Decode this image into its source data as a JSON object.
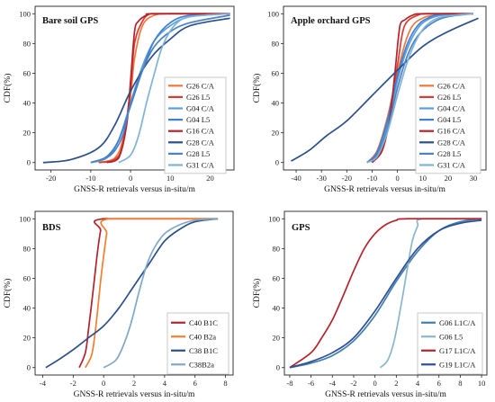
{
  "chart_data": [
    {
      "type": "line",
      "title": "Bare soil  GPS",
      "xlabel": "GNSS-R retrievals versus in-situ/m",
      "ylabel": "CDF(%)",
      "xlim": [
        -24,
        26
      ],
      "ylim": [
        -5,
        105
      ],
      "xticks": [
        -20,
        -10,
        0,
        10,
        20
      ],
      "yticks": [
        0,
        20,
        40,
        60,
        80,
        100
      ],
      "legend_position": "bottom-right",
      "series": [
        {
          "name": "G26 C/A",
          "color": "#f2773d",
          "x": [
            -8,
            -4,
            -2,
            0,
            1,
            3,
            6,
            10,
            25
          ],
          "y": [
            0,
            3,
            15,
            45,
            70,
            92,
            99,
            100,
            100
          ]
        },
        {
          "name": "G26 L5",
          "color": "#e03a30",
          "x": [
            -8,
            -4,
            -2,
            0,
            1,
            3,
            5,
            8,
            25
          ],
          "y": [
            0,
            2,
            12,
            50,
            80,
            95,
            100,
            100,
            100
          ]
        },
        {
          "name": "G04 C/A",
          "color": "#5aa0dc",
          "x": [
            -10,
            -6,
            -3,
            0,
            3,
            6,
            10,
            15,
            25
          ],
          "y": [
            0,
            3,
            15,
            40,
            65,
            82,
            92,
            98,
            100
          ]
        },
        {
          "name": "G04 L5",
          "color": "#3f7fd0",
          "x": [
            -10,
            -6,
            -3,
            0,
            3,
            6,
            10,
            15,
            25
          ],
          "y": [
            0,
            4,
            15,
            38,
            62,
            82,
            94,
            99,
            100
          ]
        },
        {
          "name": "G16 C/A",
          "color": "#b3232b",
          "x": [
            -6,
            -3,
            -1,
            0,
            1,
            2,
            4,
            6,
            25
          ],
          "y": [
            0,
            3,
            25,
            55,
            88,
            95,
            99,
            100,
            100
          ]
        },
        {
          "name": "G28 C/A",
          "color": "#2a4f8a",
          "x": [
            -22,
            -15,
            -8,
            -4,
            0,
            5,
            10,
            15,
            25
          ],
          "y": [
            0,
            2,
            10,
            25,
            48,
            70,
            83,
            92,
            97
          ]
        },
        {
          "name": "G28 L5",
          "color": "#4d82c2",
          "x": [
            -10,
            -5,
            -2,
            0,
            3,
            6,
            10,
            15,
            25
          ],
          "y": [
            0,
            5,
            18,
            40,
            62,
            78,
            88,
            94,
            99
          ]
        },
        {
          "name": "G31 C/A",
          "color": "#7fb2d6",
          "x": [
            -3,
            0,
            2,
            4,
            6,
            8,
            11,
            15,
            25
          ],
          "y": [
            0,
            5,
            18,
            40,
            60,
            78,
            92,
            98,
            100
          ]
        }
      ]
    },
    {
      "type": "line",
      "title": "Apple orchard GPS",
      "xlabel": "GNSS-R retrievals versus in-situ/m",
      "ylabel": "CDF(%)",
      "xlim": [
        -45,
        35
      ],
      "ylim": [
        -5,
        105
      ],
      "xticks": [
        -40,
        -30,
        -20,
        -10,
        0,
        10,
        20,
        30
      ],
      "yticks": [
        0,
        20,
        40,
        60,
        80,
        100
      ],
      "legend_position": "bottom-right",
      "series": [
        {
          "name": "G26 C/A",
          "color": "#f2773d",
          "x": [
            -12,
            -8,
            -4,
            0,
            3,
            6,
            10,
            15,
            30
          ],
          "y": [
            0,
            8,
            30,
            60,
            80,
            92,
            97,
            99,
            100
          ]
        },
        {
          "name": "G26 L5",
          "color": "#e03a30",
          "x": [
            -10,
            -6,
            -3,
            0,
            2,
            4,
            8,
            12,
            30
          ],
          "y": [
            0,
            10,
            35,
            65,
            87,
            95,
            99,
            100,
            100
          ]
        },
        {
          "name": "G04 C/A",
          "color": "#5aa0dc",
          "x": [
            -12,
            -8,
            -4,
            0,
            4,
            8,
            12,
            18,
            30
          ],
          "y": [
            0,
            6,
            25,
            55,
            77,
            90,
            96,
            99,
            100
          ]
        },
        {
          "name": "G04 L5",
          "color": "#3f7fd0",
          "x": [
            -12,
            -8,
            -4,
            0,
            4,
            8,
            12,
            18,
            30
          ],
          "y": [
            0,
            7,
            28,
            58,
            80,
            92,
            97,
            100,
            100
          ]
        },
        {
          "name": "G16 C/A",
          "color": "#b3232b",
          "x": [
            -10,
            -6,
            -3,
            -1,
            1,
            3,
            6,
            10,
            30
          ],
          "y": [
            0,
            8,
            30,
            60,
            92,
            96,
            99,
            100,
            100
          ]
        },
        {
          "name": "G28 C/A",
          "color": "#2a4f8a",
          "x": [
            -42,
            -35,
            -28,
            -20,
            -10,
            0,
            10,
            20,
            32
          ],
          "y": [
            1,
            8,
            18,
            28,
            45,
            62,
            78,
            88,
            97
          ]
        },
        {
          "name": "G28 L5",
          "color": "#4d82c2",
          "x": [
            -12,
            -8,
            -4,
            0,
            4,
            8,
            14,
            20,
            30
          ],
          "y": [
            0,
            5,
            22,
            50,
            72,
            85,
            94,
            98,
            100
          ]
        },
        {
          "name": "G31 C/A",
          "color": "#7fb2d6",
          "x": [
            -12,
            -8,
            -4,
            0,
            4,
            8,
            12,
            18,
            30
          ],
          "y": [
            0,
            4,
            20,
            45,
            68,
            84,
            93,
            98,
            100
          ]
        }
      ]
    },
    {
      "type": "line",
      "title": "BDS",
      "xlabel": "GNSS-R retrievals versus in-situ/m",
      "ylabel": "CDF(%)",
      "xlim": [
        -4.5,
        8.5
      ],
      "ylim": [
        -5,
        105
      ],
      "xticks": [
        -4,
        -2,
        0,
        2,
        4,
        6,
        8
      ],
      "yticks": [
        0,
        20,
        40,
        60,
        80,
        100
      ],
      "legend_position": "bottom-right",
      "series": [
        {
          "name": "C40 B1C",
          "color": "#b3232b",
          "x": [
            -1.6,
            -1.2,
            -1.0,
            -0.8,
            -0.6,
            -0.4,
            -0.2,
            0.0,
            7.5
          ],
          "y": [
            0,
            10,
            25,
            42,
            60,
            78,
            92,
            100,
            100
          ]
        },
        {
          "name": "C40 B2a",
          "color": "#f08030",
          "x": [
            -1.2,
            -0.8,
            -0.6,
            -0.4,
            -0.2,
            0.0,
            0.2,
            0.4,
            7.5
          ],
          "y": [
            0,
            8,
            20,
            38,
            58,
            75,
            90,
            100,
            100
          ]
        },
        {
          "name": "C38 B1C",
          "color": "#2a4f8a",
          "x": [
            -3.8,
            -3.0,
            -2.0,
            -1.0,
            0.0,
            1.0,
            2.0,
            3.0,
            4.0,
            5.0,
            6.0,
            7.5
          ],
          "y": [
            0,
            5,
            12,
            20,
            28,
            40,
            55,
            70,
            85,
            93,
            98,
            100
          ]
        },
        {
          "name": "C38B2a",
          "color": "#7fa8c8",
          "x": [
            0.0,
            0.8,
            1.3,
            1.8,
            2.3,
            2.8,
            3.3,
            4.0,
            5.0,
            6.0,
            7.5
          ],
          "y": [
            0,
            5,
            15,
            30,
            50,
            68,
            80,
            90,
            96,
            99,
            100
          ]
        }
      ]
    },
    {
      "type": "line",
      "title": "GPS",
      "xlabel": "GNSS-R retrievals versus in-situ/m",
      "ylabel": "CDF(%)",
      "xlim": [
        -8.5,
        10.5
      ],
      "ylim": [
        -5,
        105
      ],
      "xticks": [
        -8,
        -6,
        -4,
        -2,
        0,
        2,
        4,
        6,
        8,
        10
      ],
      "yticks": [
        0,
        20,
        40,
        60,
        80,
        100
      ],
      "legend_position": "bottom-right",
      "series": [
        {
          "name": "G06 L1C/A",
          "color": "#3f7fa8",
          "x": [
            -8,
            -6,
            -4,
            -2,
            0,
            2,
            4,
            6,
            8,
            10
          ],
          "y": [
            0,
            3,
            8,
            18,
            35,
            58,
            78,
            92,
            98,
            100
          ]
        },
        {
          "name": "G06 L5",
          "color": "#8ab6cc",
          "x": [
            0.5,
            1.2,
            1.8,
            2.4,
            3.0,
            3.5,
            4.0,
            4.5,
            10
          ],
          "y": [
            0,
            5,
            18,
            40,
            65,
            85,
            95,
            100,
            100
          ]
        },
        {
          "name": "G17 L1C/A",
          "color": "#b3232b",
          "x": [
            -8,
            -6,
            -5,
            -4,
            -3,
            -2,
            -1,
            0,
            1,
            2,
            3,
            10
          ],
          "y": [
            0,
            10,
            20,
            32,
            48,
            65,
            80,
            90,
            96,
            99,
            100,
            100
          ]
        },
        {
          "name": "G19 L1C/A",
          "color": "#2e4d9a",
          "x": [
            -8,
            -6,
            -4,
            -2,
            0,
            2,
            4,
            6,
            8,
            10
          ],
          "y": [
            0,
            4,
            10,
            20,
            38,
            60,
            80,
            92,
            97,
            99
          ]
        }
      ]
    }
  ]
}
